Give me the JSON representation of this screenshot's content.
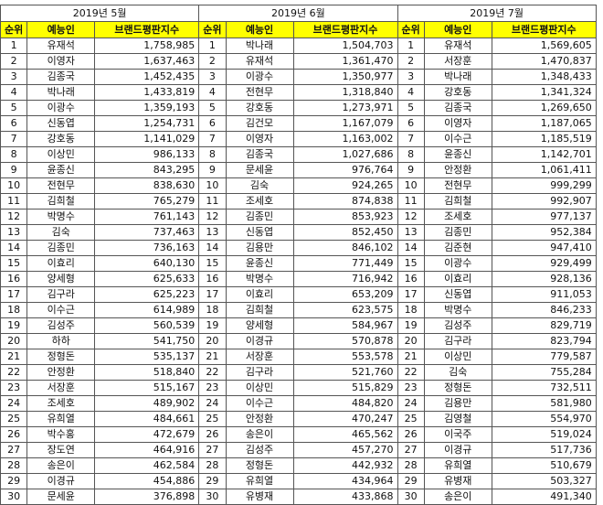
{
  "headers": {
    "rank": "순위",
    "name": "예능인",
    "index": "브랜드평판지수"
  },
  "colors": {
    "header_bg": "#ffff00",
    "border": "#555555"
  },
  "months": [
    {
      "title": "2019년 5월",
      "rows": [
        {
          "rank": "1",
          "name": "유재석",
          "value": "1,758,985"
        },
        {
          "rank": "2",
          "name": "이영자",
          "value": "1,637,463"
        },
        {
          "rank": "3",
          "name": "김종국",
          "value": "1,452,435"
        },
        {
          "rank": "4",
          "name": "박나래",
          "value": "1,433,819"
        },
        {
          "rank": "5",
          "name": "이광수",
          "value": "1,359,193"
        },
        {
          "rank": "6",
          "name": "신동엽",
          "value": "1,254,731"
        },
        {
          "rank": "7",
          "name": "강호동",
          "value": "1,141,029"
        },
        {
          "rank": "8",
          "name": "이상민",
          "value": "986,133"
        },
        {
          "rank": "9",
          "name": "윤종신",
          "value": "843,295"
        },
        {
          "rank": "10",
          "name": "전현무",
          "value": "838,630"
        },
        {
          "rank": "11",
          "name": "김희철",
          "value": "765,279"
        },
        {
          "rank": "12",
          "name": "박명수",
          "value": "761,143"
        },
        {
          "rank": "13",
          "name": "김숙",
          "value": "737,463"
        },
        {
          "rank": "14",
          "name": "김종민",
          "value": "736,163"
        },
        {
          "rank": "15",
          "name": "이효리",
          "value": "640,130"
        },
        {
          "rank": "16",
          "name": "양세형",
          "value": "625,633"
        },
        {
          "rank": "17",
          "name": "김구라",
          "value": "625,223"
        },
        {
          "rank": "18",
          "name": "이수근",
          "value": "614,989"
        },
        {
          "rank": "19",
          "name": "김성주",
          "value": "560,539"
        },
        {
          "rank": "20",
          "name": "하하",
          "value": "541,750"
        },
        {
          "rank": "21",
          "name": "정형돈",
          "value": "535,137"
        },
        {
          "rank": "22",
          "name": "안정환",
          "value": "518,840"
        },
        {
          "rank": "23",
          "name": "서장훈",
          "value": "515,167"
        },
        {
          "rank": "24",
          "name": "조세호",
          "value": "489,902"
        },
        {
          "rank": "25",
          "name": "유희열",
          "value": "484,661"
        },
        {
          "rank": "26",
          "name": "박수홍",
          "value": "472,679"
        },
        {
          "rank": "27",
          "name": "장도연",
          "value": "464,916"
        },
        {
          "rank": "28",
          "name": "송은이",
          "value": "462,584"
        },
        {
          "rank": "29",
          "name": "이경규",
          "value": "454,886"
        },
        {
          "rank": "30",
          "name": "문세윤",
          "value": "376,898"
        }
      ]
    },
    {
      "title": "2019년 6월",
      "rows": [
        {
          "rank": "1",
          "name": "박나래",
          "value": "1,504,703"
        },
        {
          "rank": "2",
          "name": "유재석",
          "value": "1,361,470"
        },
        {
          "rank": "3",
          "name": "이광수",
          "value": "1,350,977"
        },
        {
          "rank": "4",
          "name": "전현무",
          "value": "1,318,840"
        },
        {
          "rank": "5",
          "name": "강호동",
          "value": "1,273,971"
        },
        {
          "rank": "6",
          "name": "김건모",
          "value": "1,167,079"
        },
        {
          "rank": "7",
          "name": "이영자",
          "value": "1,163,002"
        },
        {
          "rank": "8",
          "name": "김종국",
          "value": "1,027,686"
        },
        {
          "rank": "9",
          "name": "문세윤",
          "value": "976,764"
        },
        {
          "rank": "10",
          "name": "김숙",
          "value": "924,265"
        },
        {
          "rank": "11",
          "name": "조세호",
          "value": "874,838"
        },
        {
          "rank": "12",
          "name": "김종민",
          "value": "853,923"
        },
        {
          "rank": "13",
          "name": "신동엽",
          "value": "852,450"
        },
        {
          "rank": "14",
          "name": "김용만",
          "value": "846,102"
        },
        {
          "rank": "15",
          "name": "윤종신",
          "value": "771,449"
        },
        {
          "rank": "16",
          "name": "박명수",
          "value": "716,942"
        },
        {
          "rank": "17",
          "name": "이효리",
          "value": "653,209"
        },
        {
          "rank": "18",
          "name": "김희철",
          "value": "623,575"
        },
        {
          "rank": "19",
          "name": "양세형",
          "value": "584,967"
        },
        {
          "rank": "20",
          "name": "이경규",
          "value": "570,878"
        },
        {
          "rank": "21",
          "name": "서장훈",
          "value": "553,578"
        },
        {
          "rank": "22",
          "name": "김구라",
          "value": "521,760"
        },
        {
          "rank": "23",
          "name": "이상민",
          "value": "515,829"
        },
        {
          "rank": "24",
          "name": "이수근",
          "value": "484,820"
        },
        {
          "rank": "25",
          "name": "안정환",
          "value": "470,247"
        },
        {
          "rank": "26",
          "name": "송은이",
          "value": "465,562"
        },
        {
          "rank": "27",
          "name": "김성주",
          "value": "457,270"
        },
        {
          "rank": "28",
          "name": "정형돈",
          "value": "442,932"
        },
        {
          "rank": "29",
          "name": "유희열",
          "value": "434,964"
        },
        {
          "rank": "30",
          "name": "유병재",
          "value": "433,868"
        }
      ]
    },
    {
      "title": "2019년 7월",
      "rows": [
        {
          "rank": "1",
          "name": "유재석",
          "value": "1,569,605"
        },
        {
          "rank": "2",
          "name": "서장훈",
          "value": "1,470,837"
        },
        {
          "rank": "3",
          "name": "박나래",
          "value": "1,348,433"
        },
        {
          "rank": "4",
          "name": "강호동",
          "value": "1,341,324"
        },
        {
          "rank": "5",
          "name": "김종국",
          "value": "1,269,650"
        },
        {
          "rank": "6",
          "name": "이영자",
          "value": "1,187,065"
        },
        {
          "rank": "7",
          "name": "이수근",
          "value": "1,185,519"
        },
        {
          "rank": "8",
          "name": "윤종신",
          "value": "1,142,701"
        },
        {
          "rank": "9",
          "name": "안정환",
          "value": "1,061,411"
        },
        {
          "rank": "10",
          "name": "전현무",
          "value": "999,299"
        },
        {
          "rank": "11",
          "name": "김희철",
          "value": "992,907"
        },
        {
          "rank": "12",
          "name": "조세호",
          "value": "977,137"
        },
        {
          "rank": "13",
          "name": "김종민",
          "value": "952,384"
        },
        {
          "rank": "14",
          "name": "김준현",
          "value": "947,410"
        },
        {
          "rank": "15",
          "name": "이광수",
          "value": "929,499"
        },
        {
          "rank": "16",
          "name": "이효리",
          "value": "928,136"
        },
        {
          "rank": "17",
          "name": "신동엽",
          "value": "911,053"
        },
        {
          "rank": "18",
          "name": "박명수",
          "value": "846,233"
        },
        {
          "rank": "19",
          "name": "김성주",
          "value": "829,719"
        },
        {
          "rank": "20",
          "name": "김구라",
          "value": "823,794"
        },
        {
          "rank": "21",
          "name": "이상민",
          "value": "779,587"
        },
        {
          "rank": "22",
          "name": "김숙",
          "value": "755,284"
        },
        {
          "rank": "23",
          "name": "정형돈",
          "value": "732,511"
        },
        {
          "rank": "24",
          "name": "김용만",
          "value": "581,980"
        },
        {
          "rank": "25",
          "name": "김영철",
          "value": "554,970"
        },
        {
          "rank": "26",
          "name": "이국주",
          "value": "519,024"
        },
        {
          "rank": "27",
          "name": "이경규",
          "value": "517,736"
        },
        {
          "rank": "28",
          "name": "유희열",
          "value": "510,679"
        },
        {
          "rank": "29",
          "name": "유병재",
          "value": "503,327"
        },
        {
          "rank": "30",
          "name": "송은이",
          "value": "491,340"
        }
      ]
    }
  ]
}
